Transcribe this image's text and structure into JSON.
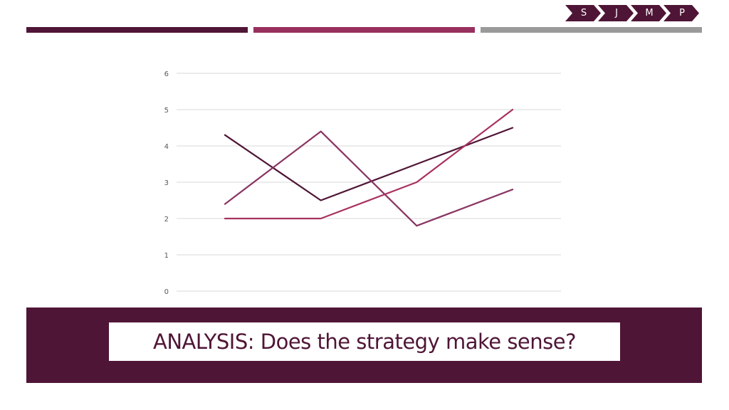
{
  "nav": {
    "items": [
      "S",
      "J",
      "M",
      "P"
    ],
    "color": "#4f1536"
  },
  "header_bars": {
    "colors": [
      "#4f1536",
      "#98305e",
      "#9a9a9a"
    ]
  },
  "chart_data": {
    "type": "line",
    "categories": [
      "",
      "",
      "",
      ""
    ],
    "ylim": [
      0,
      6
    ],
    "yticks": [
      "0",
      "1",
      "2",
      "3",
      "4",
      "5",
      "6"
    ],
    "grid": true,
    "legend": "none",
    "series": [
      {
        "values": [
          4.3,
          2.5,
          3.5,
          4.5
        ],
        "color": "#4f1536"
      },
      {
        "values": [
          2.4,
          4.4,
          1.8,
          2.8
        ],
        "color": "#8a3563"
      },
      {
        "values": [
          2.0,
          2.0,
          3.0,
          5.0
        ],
        "color": "#a83260"
      }
    ]
  },
  "banner": {
    "title": "ANALYSIS: Does the strategy make sense?",
    "background": "#4f1536"
  }
}
